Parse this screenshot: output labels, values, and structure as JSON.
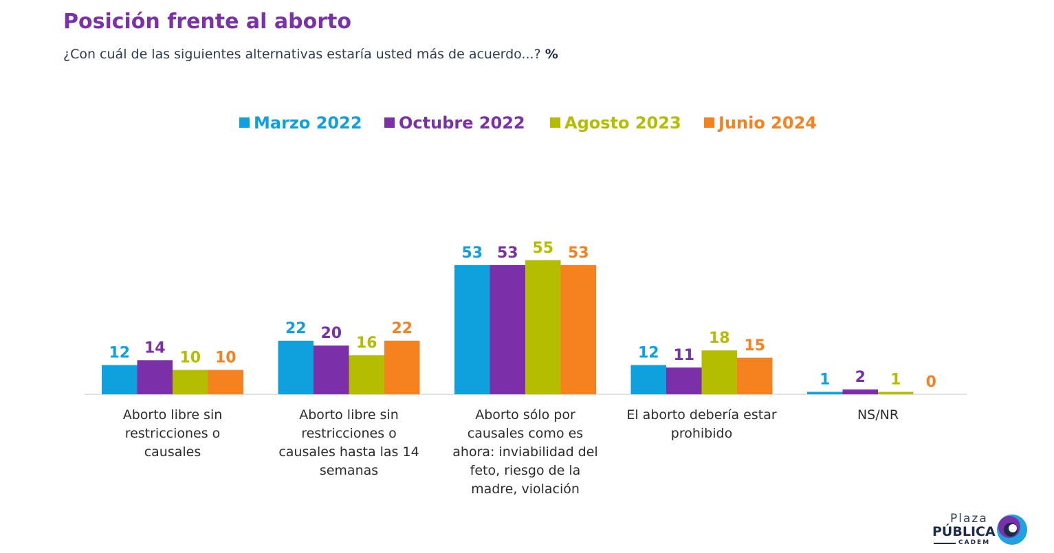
{
  "title": "Posición frente al aborto",
  "subtitle": "¿Con cuál de las siguientes alternativas estaría usted más de acuerdo...?",
  "subtitle_unit": "%",
  "logo": {
    "line1": "Plaza",
    "line2": "PÚBLICA",
    "line3": "CADEM"
  },
  "chart_data": {
    "type": "bar",
    "categories": [
      [
        "Aborto libre sin",
        "restricciones o",
        "causales"
      ],
      [
        "Aborto libre sin",
        "restricciones o",
        "causales hasta las 14",
        "semanas"
      ],
      [
        "Aborto sólo por",
        "causales como es",
        "ahora: inviabilidad del",
        "feto, riesgo de la",
        "madre, violación"
      ],
      [
        "El aborto debería estar",
        "prohibido"
      ],
      [
        "NS/NR"
      ]
    ],
    "series": [
      {
        "name": "Marzo 2022",
        "color": "#0ea1dd",
        "values": [
          12,
          22,
          53,
          12,
          1
        ]
      },
      {
        "name": "Octubre 2022",
        "color": "#7b2fa8",
        "values": [
          14,
          20,
          53,
          11,
          2
        ]
      },
      {
        "name": "Agosto 2023",
        "color": "#b5bd00",
        "values": [
          10,
          16,
          55,
          18,
          1
        ]
      },
      {
        "name": "Junio 2024",
        "color": "#f5821f",
        "values": [
          10,
          22,
          53,
          15,
          0
        ]
      }
    ],
    "legend_position": "top-center",
    "data_labels": true,
    "grid": false
  }
}
